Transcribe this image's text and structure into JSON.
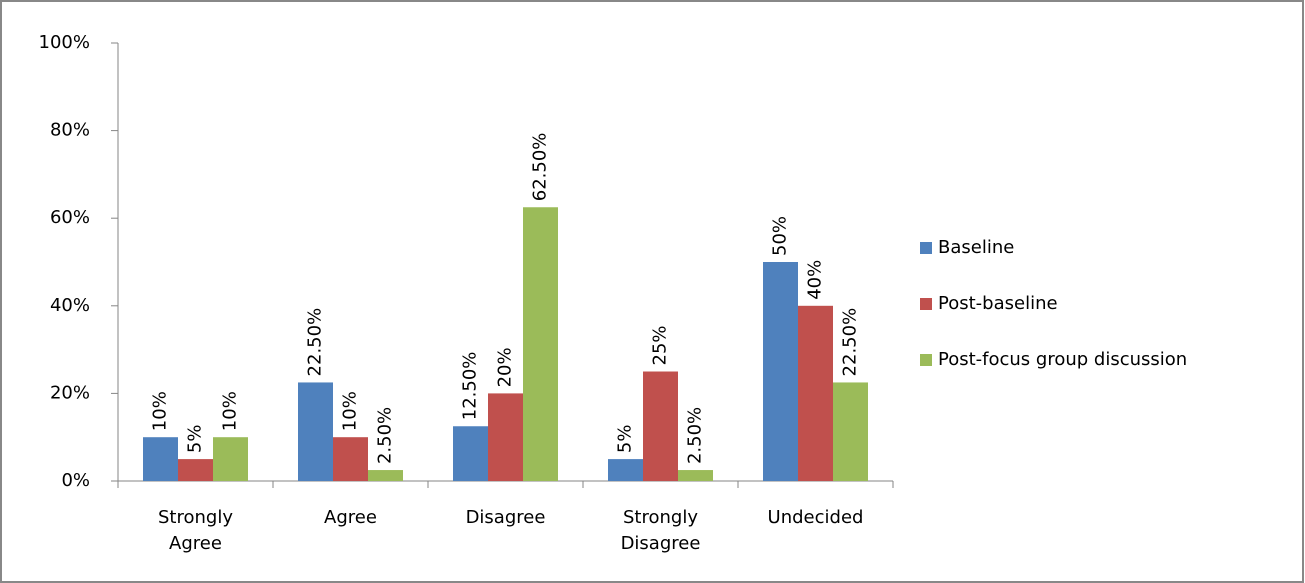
{
  "chart_data": {
    "type": "bar",
    "categories": [
      "Strongly Agree",
      "Agree",
      "Disagree",
      "Strongly Disagree",
      "Undecided"
    ],
    "series": [
      {
        "name": "Baseline",
        "color": "#4f81bd",
        "values": [
          10,
          22.5,
          12.5,
          5,
          50
        ],
        "value_labels": [
          "10%",
          "22.50%",
          "12.50%",
          "5%",
          "50%"
        ]
      },
      {
        "name": "Post-baseline",
        "color": "#c0504d",
        "values": [
          5,
          10,
          20,
          25,
          40
        ],
        "value_labels": [
          "5%",
          "10%",
          "20%",
          "25%",
          "40%"
        ]
      },
      {
        "name": "Post-focus group discussion",
        "color": "#9bbb59",
        "values": [
          10,
          2.5,
          62.5,
          2.5,
          22.5
        ],
        "value_labels": [
          "10%",
          "2.50%",
          "62.50%",
          "2.50%",
          "22.50%"
        ]
      }
    ],
    "ylim": [
      0,
      100
    ],
    "yticks": [
      {
        "value": 0,
        "label": "0%"
      },
      {
        "value": 20,
        "label": "20%"
      },
      {
        "value": 40,
        "label": "40%"
      },
      {
        "value": 60,
        "label": "60%"
      },
      {
        "value": 80,
        "label": "80%"
      },
      {
        "value": 100,
        "label": "100%"
      }
    ],
    "legend": "right"
  }
}
